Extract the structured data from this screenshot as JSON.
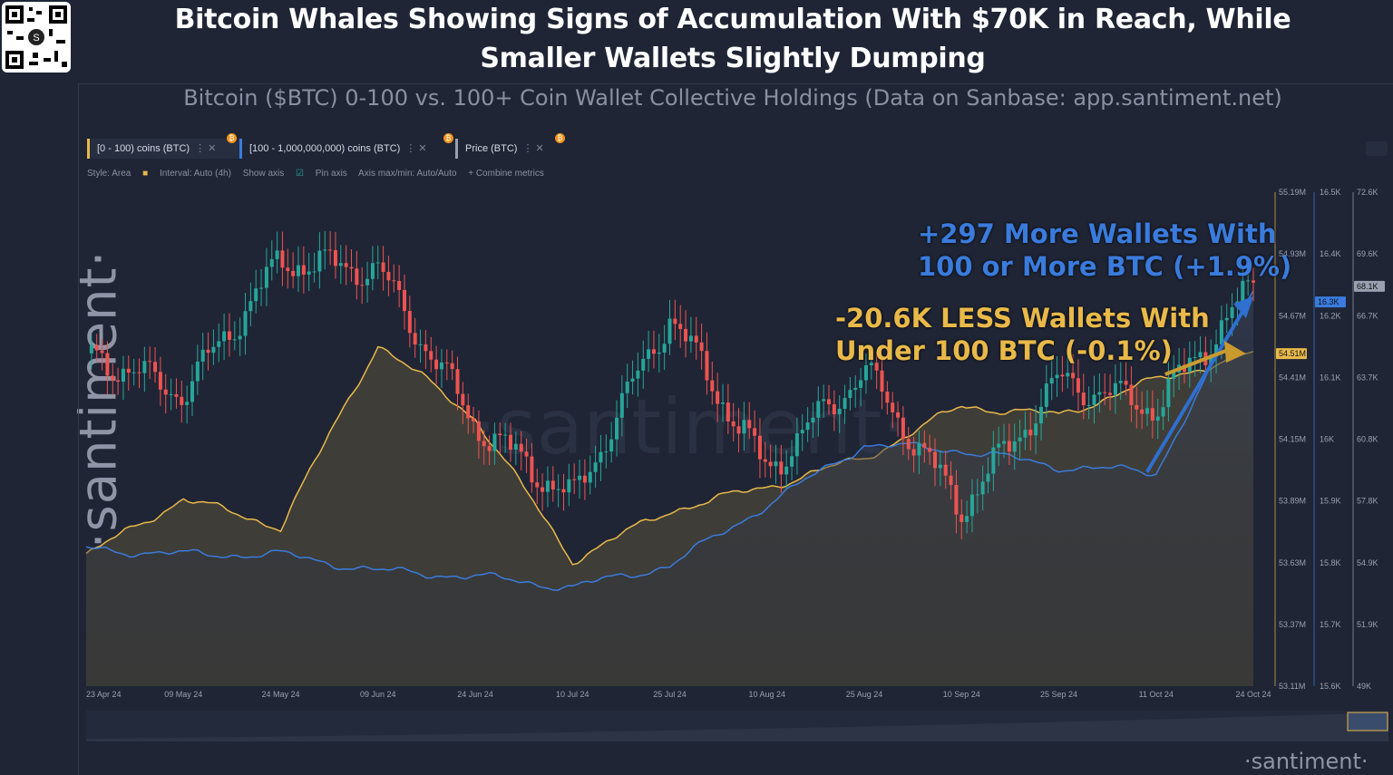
{
  "header": {
    "title_line1": "Bitcoin Whales Showing Signs of Accumulation With $70K in Reach, While",
    "title_line2": "Smaller Wallets Slightly Dumping",
    "subtitle": "Bitcoin ($BTC) 0-100 vs. 100+ Coin Wallet Collective Holdings (Data on Sanbase: app.santiment.net)"
  },
  "brand": {
    "side": "·santiment·",
    "footer": "·santiment·",
    "qr_letter": "S"
  },
  "metrics": [
    {
      "label": "[0 - 100) coins (BTC)",
      "color": "#e9b949"
    },
    {
      "label": "[100 - 1,000,000,000) coins (BTC)",
      "color": "#3a7bdc"
    },
    {
      "label": "Price (BTC)",
      "color": "#9aa0b0"
    }
  ],
  "toolbar": {
    "style": "Style: Area",
    "interval": "Interval: Auto (4h)",
    "show_axis": "Show axis",
    "pin_axis": "Pin axis",
    "axis_mode": "Axis max/min: Auto/Auto",
    "combine": "+ Combine metrics"
  },
  "annotations": {
    "whales_line1": "+297 More Wallets With",
    "whales_line2": "100 or More BTC (+1.9%)",
    "small_line1": "-20.6K LESS Wallets With",
    "small_line2": "Under 100 BTC (-0.1%)"
  },
  "colors": {
    "small": "#e9b949",
    "whales": "#3a7bdc",
    "up": "#26a69a",
    "down": "#ef5350",
    "bg": "#1f2535"
  },
  "chart_data": {
    "type": "line",
    "x": [
      "23 Apr 24",
      "09 May 24",
      "24 May 24",
      "09 Jun 24",
      "24 Jun 24",
      "10 Jul 24",
      "25 Jul 24",
      "10 Aug 24",
      "25 Aug 24",
      "10 Sep 24",
      "25 Sep 24",
      "11 Oct 24",
      "24 Oct 24"
    ],
    "axes": {
      "small_holdings": {
        "ticks": [
          "55.19M",
          "54.93M",
          "54.67M",
          "54.41M",
          "54.15M",
          "53.89M",
          "53.63M",
          "53.37M",
          "53.11M"
        ],
        "min": 53.11,
        "max": 55.19,
        "unit": "M",
        "current": "54.51M"
      },
      "whale_holdings": {
        "ticks": [
          "16.5K",
          "16.4K",
          "16.2K",
          "16.1K",
          "16K",
          "15.9K",
          "15.8K",
          "15.7K",
          "15.6K"
        ],
        "min": 15.6,
        "max": 16.5,
        "unit": "K",
        "current": "16.3K"
      },
      "price": {
        "ticks": [
          "72.6K",
          "69.6K",
          "66.7K",
          "63.7K",
          "60.8K",
          "57.8K",
          "54.9K",
          "51.9K",
          "49K"
        ],
        "min": 49,
        "max": 72.6,
        "unit": "K",
        "current": "68.1K"
      }
    },
    "series": [
      {
        "name": "[0 - 100) coins (BTC)",
        "axis": "small_holdings",
        "values": [
          53.66,
          53.9,
          53.78,
          54.55,
          54.24,
          53.64,
          53.85,
          53.95,
          54.07,
          54.29,
          54.25,
          54.4,
          54.51
        ]
      },
      {
        "name": "[100 - 1,000,000,000) coins (BTC)",
        "axis": "whale_holdings",
        "values": [
          15.85,
          15.84,
          15.84,
          15.81,
          15.8,
          15.78,
          15.82,
          15.93,
          16.04,
          16.03,
          16.0,
          15.99,
          16.32
        ]
      },
      {
        "name": "Price (BTC)",
        "axis": "price",
        "values": [
          64.9,
          63.0,
          69.3,
          68.9,
          61.5,
          57.9,
          66.7,
          59.3,
          64.1,
          57.5,
          63.6,
          62.3,
          68.1
        ]
      }
    ]
  }
}
